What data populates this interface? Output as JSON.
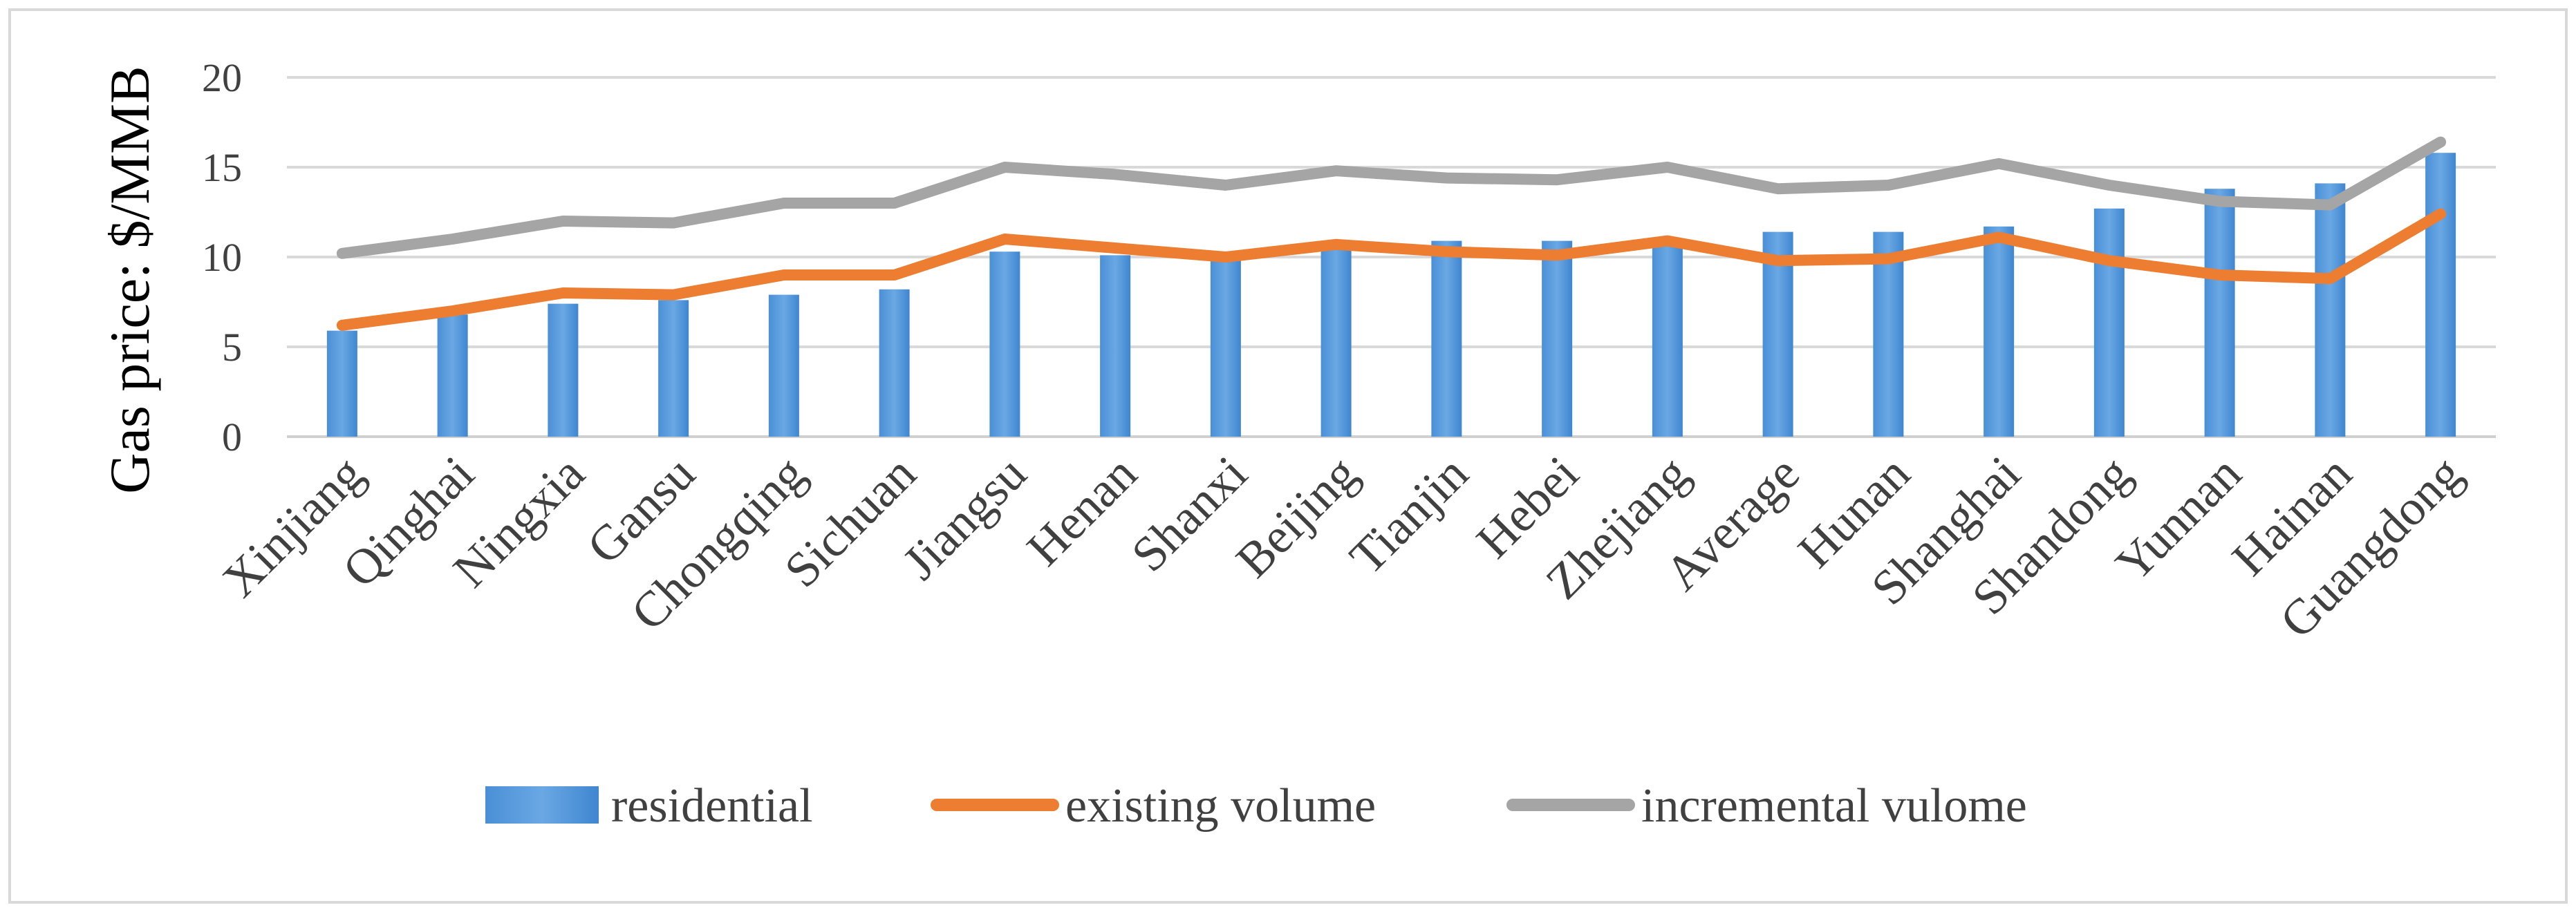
{
  "chart_data": {
    "type": "bar",
    "title": "",
    "xlabel": "",
    "ylabel": "Gas price: $/MMB",
    "ylim": [
      0,
      20
    ],
    "yticks": [
      0,
      5,
      10,
      15,
      20
    ],
    "grid": true,
    "legend_position": "bottom",
    "categories": [
      "Xinjiang",
      "Qinghai",
      "Ningxia",
      "Gansu",
      "Chongqing",
      "Sichuan",
      "Jiangsu",
      "Henan",
      "Shanxi",
      "Beijing",
      "Tianjin",
      "Hebei",
      "Zhejiang",
      "Average",
      "Hunan",
      "Shanghai",
      "Shandong",
      "Yunnan",
      "Hainan",
      "Guangdong"
    ],
    "series": [
      {
        "name": "residential",
        "kind": "bar",
        "color": "#5B9BD5",
        "values": [
          5.9,
          6.8,
          7.4,
          7.6,
          7.9,
          8.2,
          10.3,
          10.1,
          9.8,
          10.5,
          10.9,
          10.9,
          10.6,
          11.4,
          11.4,
          11.7,
          12.7,
          13.8,
          14.1,
          15.8
        ]
      },
      {
        "name": "existing volume",
        "kind": "line",
        "color": "#ED7D31",
        "values": [
          6.2,
          7.0,
          8.0,
          7.9,
          9.0,
          9.0,
          11.0,
          10.5,
          10.0,
          10.7,
          10.3,
          10.1,
          10.9,
          9.8,
          9.9,
          11.1,
          9.8,
          9.0,
          8.8,
          12.4
        ]
      },
      {
        "name": "incremental vulome",
        "kind": "line",
        "color": "#A5A5A5",
        "values": [
          10.2,
          11.0,
          12.0,
          11.9,
          13.0,
          13.0,
          15.0,
          14.6,
          14.0,
          14.8,
          14.4,
          14.3,
          15.0,
          13.8,
          14.0,
          15.2,
          14.0,
          13.1,
          12.9,
          16.4
        ]
      }
    ]
  }
}
